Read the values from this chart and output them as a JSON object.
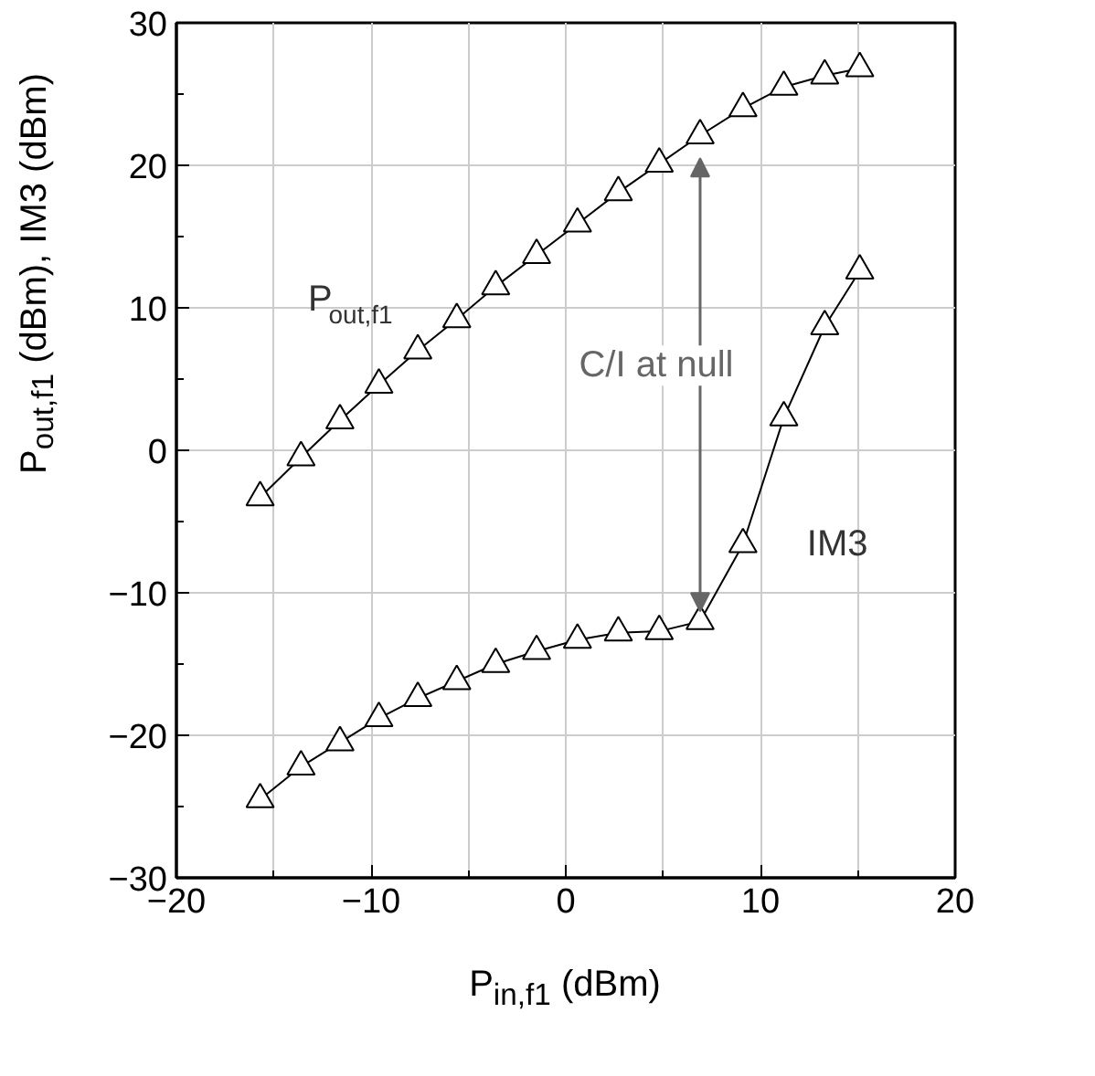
{
  "chart_data": {
    "type": "line",
    "xlabel": "P$_{in,f1}$ (dBm)",
    "ylabel": "P$_{out,f1}$ (dBm), IM3 (dBm)",
    "x": [
      -15.7,
      -13.6,
      -11.6,
      -9.6,
      -7.6,
      -5.6,
      -3.6,
      -1.5,
      0.6,
      2.7,
      4.8,
      6.9,
      9.1,
      11.2,
      13.3,
      15.1
    ],
    "series": [
      {
        "name": "P$_{out,f1}$",
        "color": "#000000",
        "values": [
          -3.3,
          -0.5,
          2.1,
          4.6,
          7.0,
          9.2,
          11.5,
          13.7,
          15.9,
          18.1,
          20.1,
          22.1,
          24.0,
          25.5,
          26.3,
          26.8
        ]
      },
      {
        "name": "IM3",
        "color": "#000000",
        "values": [
          -24.5,
          -22.2,
          -20.5,
          -18.8,
          -17.4,
          -16.2,
          -15.0,
          -14.1,
          -13.3,
          -12.8,
          -12.7,
          -12.0,
          -6.6,
          2.3,
          8.7,
          12.6
        ]
      }
    ],
    "xlim": [
      -20,
      20
    ],
    "ylim": [
      -30,
      30
    ],
    "xticks": [
      -20,
      -10,
      0,
      10,
      20
    ],
    "yticks": [
      -30,
      -20,
      -10,
      0,
      10,
      20,
      30
    ],
    "grid": true,
    "marker": "triangle",
    "line_style": "solid",
    "annotations": [
      {
        "text": "C/I at null",
        "x": 6.9,
        "y": -12.0
      }
    ]
  }
}
